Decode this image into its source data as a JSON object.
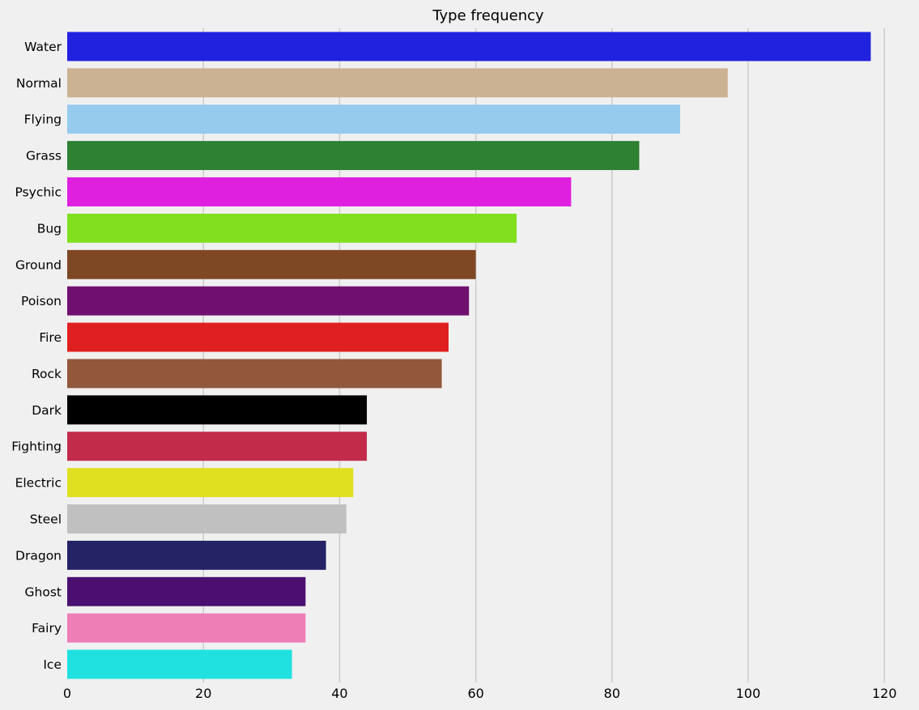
{
  "chart_data": {
    "type": "bar",
    "orientation": "horizontal",
    "title": "Type frequency",
    "xlabel": "",
    "ylabel": "",
    "xlim": [
      0,
      123.3
    ],
    "xticks": [
      0,
      20,
      40,
      60,
      80,
      100,
      120
    ],
    "grid": "vertical",
    "categories": [
      "Water",
      "Normal",
      "Flying",
      "Grass",
      "Psychic",
      "Bug",
      "Ground",
      "Poison",
      "Fire",
      "Rock",
      "Dark",
      "Fighting",
      "Electric",
      "Steel",
      "Dragon",
      "Ghost",
      "Fairy",
      "Ice"
    ],
    "values": [
      118,
      97,
      90,
      84,
      74,
      66,
      60,
      59,
      56,
      55,
      44,
      44,
      42,
      41,
      38,
      35,
      35,
      33
    ],
    "colors": [
      "#2121e0",
      "#cbb292",
      "#96cbee",
      "#2e8032",
      "#df20df",
      "#80e020",
      "#7f4824",
      "#70106e",
      "#e02020",
      "#92583c",
      "#000000",
      "#c22b4a",
      "#e0e020",
      "#c0c0c0",
      "#252366",
      "#4a0f70",
      "#ee7eb6",
      "#20e0e0"
    ],
    "background": "#f0f0f0",
    "grid_color": "#cbcbcb"
  }
}
